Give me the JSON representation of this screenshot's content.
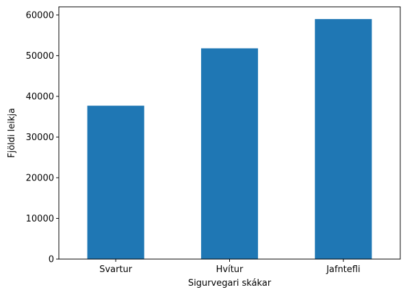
{
  "chart_data": {
    "type": "bar",
    "title": "",
    "xlabel": "Sigurvegari skákar",
    "ylabel": "Fjöldi leikja",
    "categories": [
      "Svartur",
      "Hvítur",
      "Jafntefli"
    ],
    "values": [
      37700,
      51800,
      59000
    ],
    "ylim": [
      0,
      62000
    ],
    "yticks": [
      0,
      10000,
      20000,
      30000,
      40000,
      50000,
      60000
    ],
    "ytick_labels": [
      "0",
      "10000",
      "20000",
      "30000",
      "40000",
      "50000",
      "60000"
    ],
    "grid": false,
    "legend": "none",
    "bar_color": "#1f77b4"
  }
}
